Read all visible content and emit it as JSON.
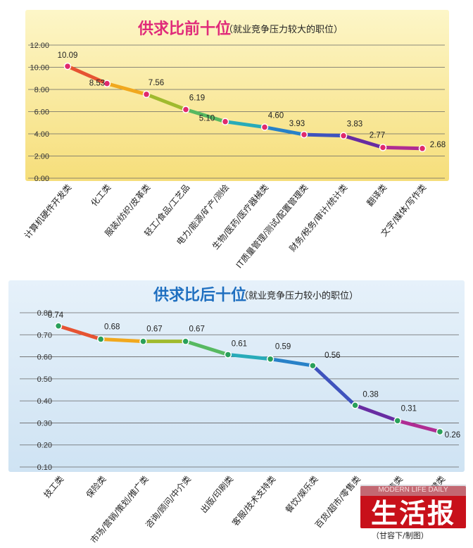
{
  "chart_data": [
    {
      "type": "line",
      "title": "供求比前十位",
      "subtitle": "（就业竞争压力较大的职位）",
      "categories": [
        "计算机硬件开发类",
        "化工类",
        "服装/纺织/皮革类",
        "轻工/食品/工艺品",
        "电力/能源/矿产/测绘",
        "生物/医药/医疗器械类",
        "IT质量管理/测试/配置管理类",
        "财务/税务/审计/统计类",
        "翻译类",
        "文字/媒体/写作类"
      ],
      "values": [
        10.09,
        8.53,
        7.56,
        6.19,
        5.1,
        4.6,
        3.93,
        3.83,
        2.77,
        2.68
      ],
      "value_labels": [
        "10.09",
        "8.53",
        "7.56",
        "6.19",
        "5.10",
        "4.60",
        "3.93",
        "3.83",
        "2.77",
        "2.68"
      ],
      "ylim": [
        0,
        12
      ],
      "yticks": [
        "0.00",
        "2.00",
        "4.00",
        "6.00",
        "8.00",
        "10.00",
        "12.00"
      ],
      "grid": true,
      "colors": {
        "background": "#fbeea6",
        "title": "#e02a7a",
        "marker": "#e0296c"
      }
    },
    {
      "type": "line",
      "title": "供求比后十位",
      "subtitle": "（就业竞争压力较小的职位）",
      "categories": [
        "技工类",
        "保险类",
        "市场/营销/策划/推广类",
        "咨询/顾问/中介类",
        "出版/印刷类",
        "客服/技术支持类",
        "餐饮/娱乐类",
        "百货/超市/零售类",
        "销售类",
        "美容/保健类"
      ],
      "values": [
        0.74,
        0.68,
        0.67,
        0.67,
        0.61,
        0.59,
        0.56,
        0.38,
        0.31,
        0.26
      ],
      "value_labels": [
        "0.74",
        "0.68",
        "0.67",
        "0.67",
        "0.61",
        "0.59",
        "0.56",
        "0.38",
        "0.31",
        "0.26"
      ],
      "ylim": [
        0.1,
        0.8
      ],
      "yticks": [
        "0.10",
        "0.20",
        "0.30",
        "0.40",
        "0.50",
        "0.60",
        "0.70",
        "0.80"
      ],
      "grid": true,
      "colors": {
        "background": "#dbeaf6",
        "title": "#1f6fc0",
        "marker": "#2aa05a"
      }
    }
  ],
  "footer": {
    "credit": "（甘容下/制图）",
    "logo_text": "生活报",
    "logo_top": "MODERN LIFE DAILY"
  }
}
